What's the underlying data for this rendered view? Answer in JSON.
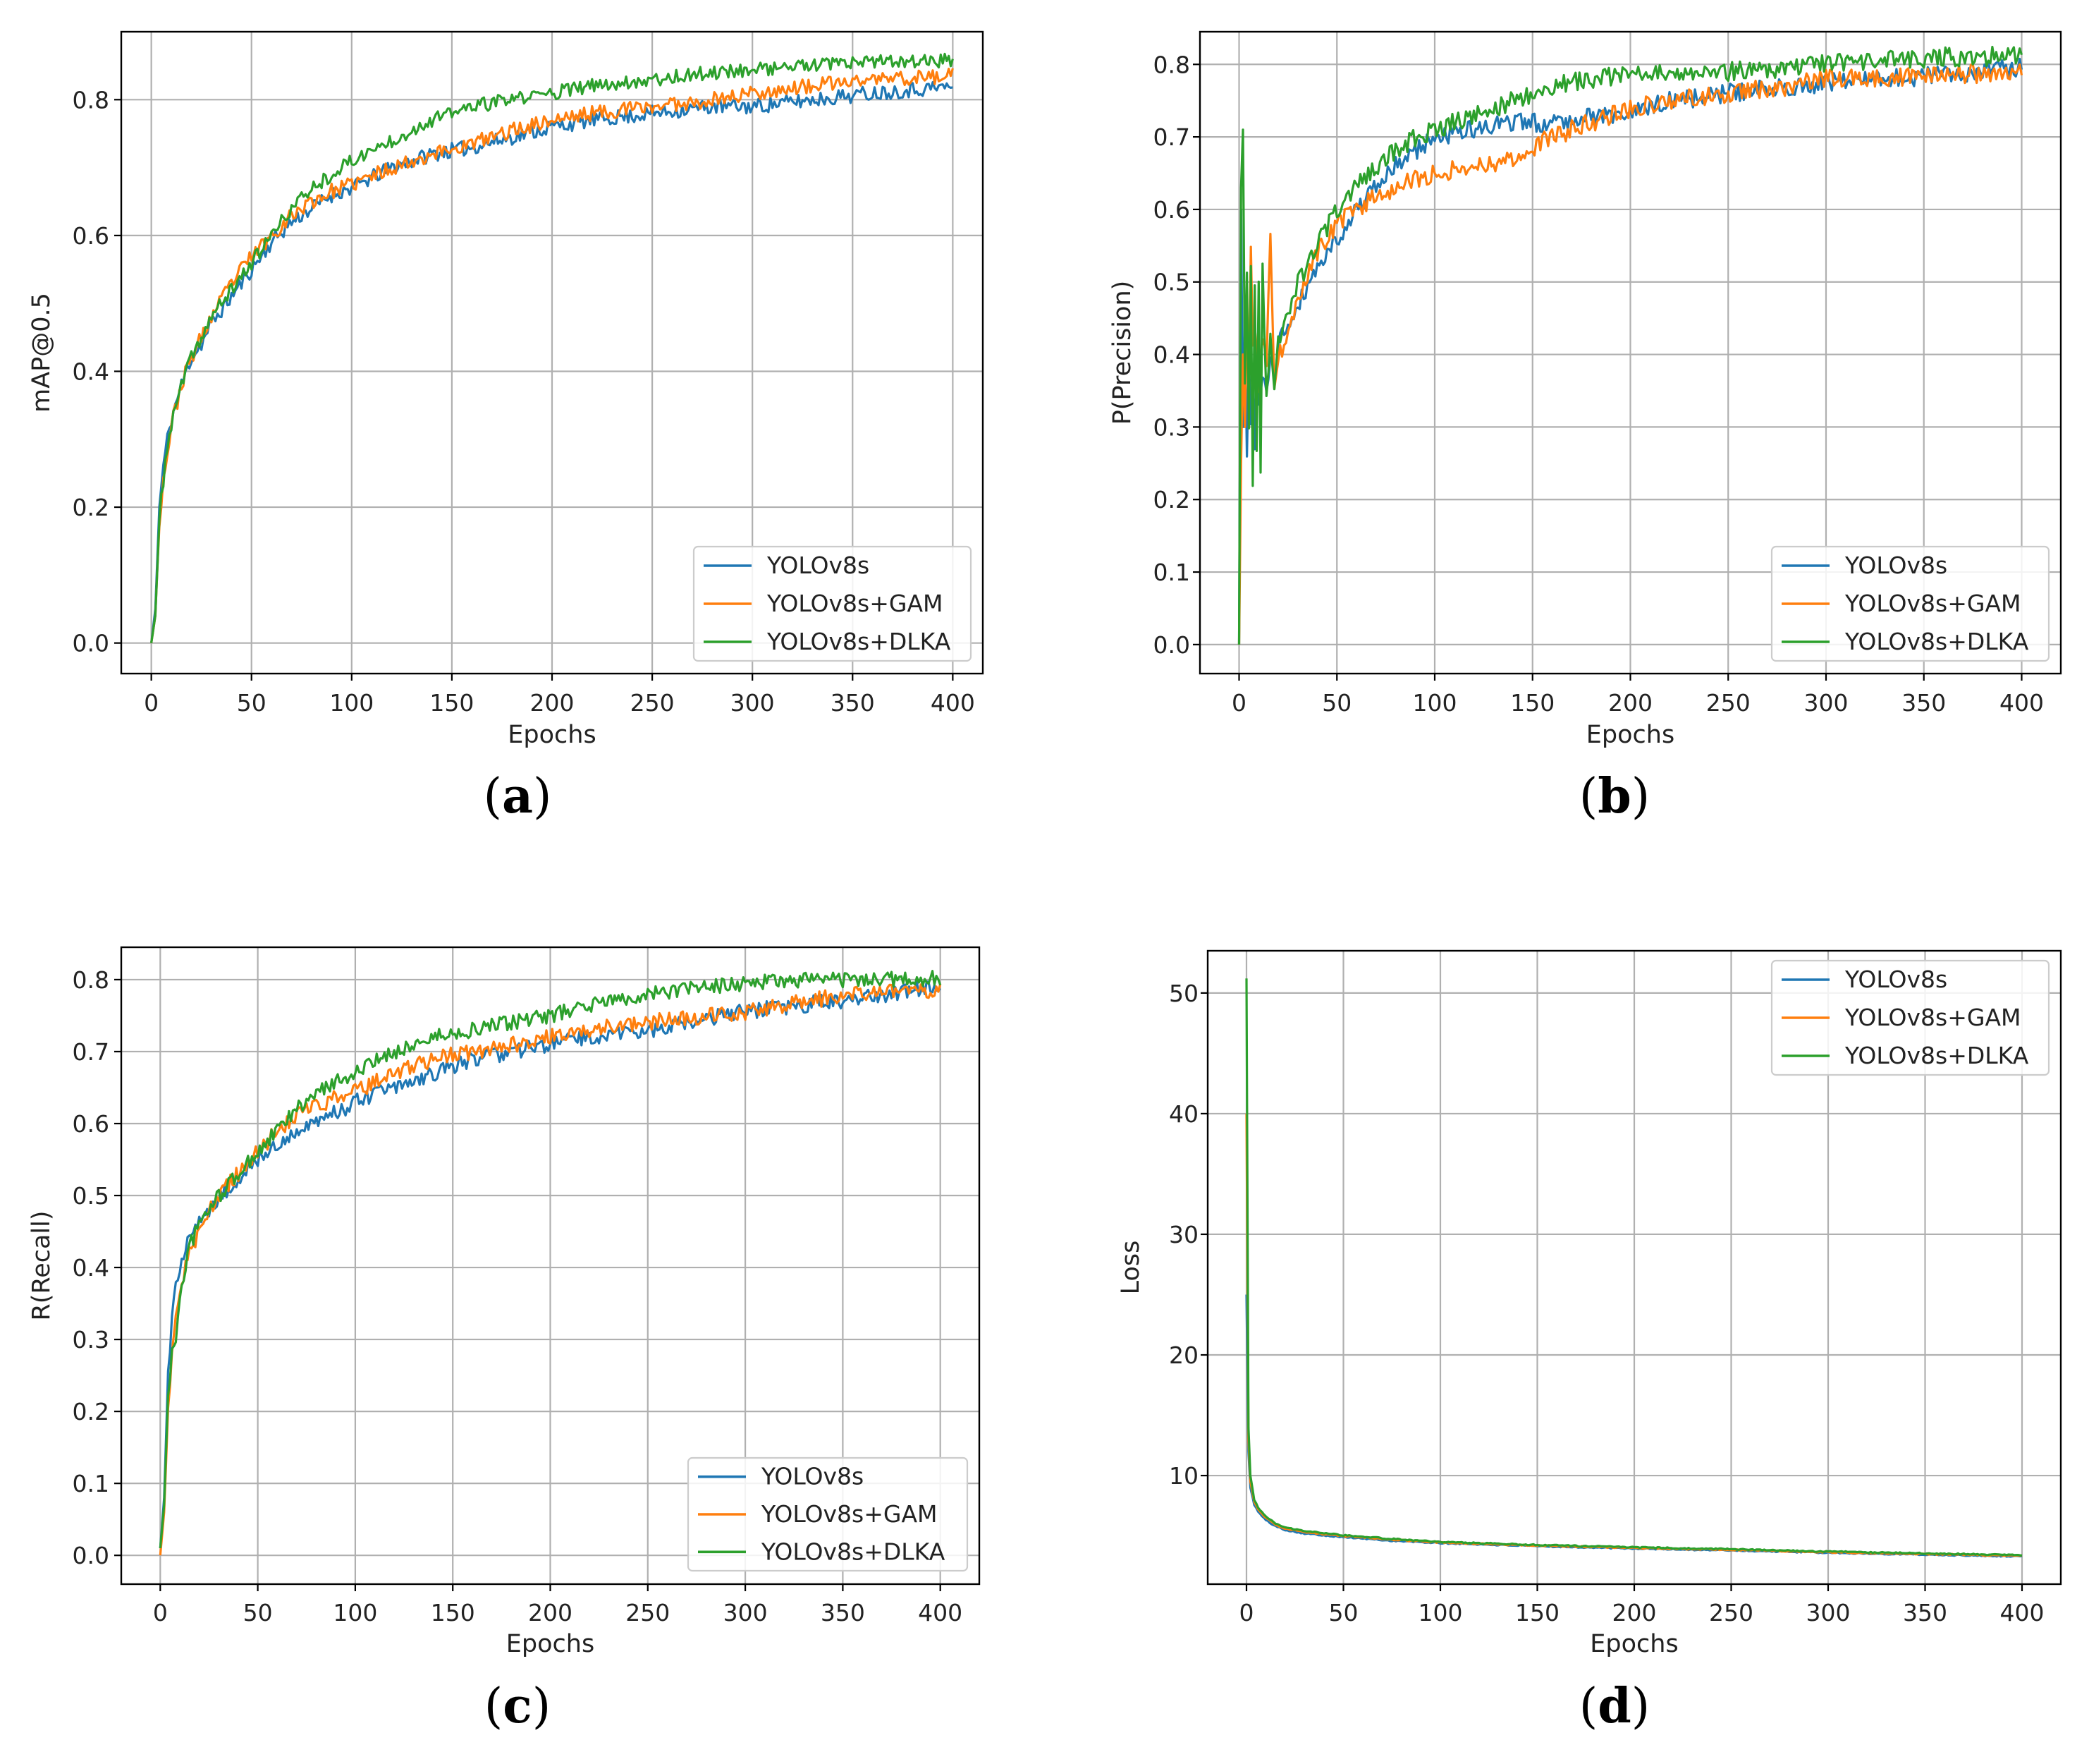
{
  "chart_data": [
    {
      "id": "a",
      "type": "line",
      "caption": "(a)",
      "caption_parts": {
        "open": "(",
        "letter": "a",
        "close": ")"
      },
      "xlabel": "Epochs",
      "ylabel": "mAP@0.5",
      "xlim": [
        -15,
        415
      ],
      "ylim": [
        -0.045,
        0.9
      ],
      "xticks": [
        0,
        50,
        100,
        150,
        200,
        250,
        300,
        350,
        400
      ],
      "yticks": [
        0.0,
        0.2,
        0.4,
        0.6,
        0.8
      ],
      "ytick_labels": [
        "0.0",
        "0.2",
        "0.4",
        "0.6",
        "0.8"
      ],
      "grid": true,
      "legend": {
        "position": "lower-right",
        "entries": [
          "YOLOv8s",
          "YOLOv8s+GAM",
          "YOLOv8s+DLKA"
        ]
      },
      "series": [
        {
          "name": "YOLOv8s",
          "color": "#1f77b4",
          "noise": 0.012,
          "seed": 11,
          "x": [
            0,
            2,
            4,
            6,
            8,
            10,
            15,
            20,
            25,
            30,
            40,
            50,
            60,
            70,
            80,
            90,
            100,
            120,
            140,
            160,
            180,
            200,
            220,
            250,
            280,
            300,
            330,
            360,
            400
          ],
          "y": [
            0.0,
            0.05,
            0.2,
            0.26,
            0.3,
            0.33,
            0.38,
            0.42,
            0.44,
            0.47,
            0.51,
            0.55,
            0.59,
            0.62,
            0.64,
            0.66,
            0.67,
            0.7,
            0.72,
            0.73,
            0.745,
            0.76,
            0.77,
            0.78,
            0.79,
            0.79,
            0.8,
            0.81,
            0.82
          ]
        },
        {
          "name": "YOLOv8s+GAM",
          "color": "#ff7f0e",
          "noise": 0.012,
          "seed": 23,
          "x": [
            0,
            2,
            4,
            6,
            8,
            10,
            15,
            20,
            25,
            30,
            40,
            50,
            60,
            70,
            80,
            90,
            100,
            120,
            140,
            160,
            180,
            200,
            220,
            250,
            280,
            300,
            330,
            360,
            400
          ],
          "y": [
            0.0,
            0.04,
            0.18,
            0.24,
            0.28,
            0.32,
            0.38,
            0.42,
            0.45,
            0.48,
            0.53,
            0.57,
            0.6,
            0.63,
            0.65,
            0.665,
            0.675,
            0.7,
            0.72,
            0.735,
            0.755,
            0.77,
            0.78,
            0.79,
            0.8,
            0.81,
            0.82,
            0.83,
            0.835
          ]
        },
        {
          "name": "YOLOv8s+DLKA",
          "color": "#2ca02c",
          "noise": 0.011,
          "seed": 37,
          "x": [
            0,
            2,
            4,
            6,
            8,
            10,
            15,
            20,
            25,
            30,
            40,
            50,
            60,
            70,
            80,
            90,
            100,
            120,
            140,
            160,
            180,
            200,
            220,
            250,
            280,
            300,
            330,
            360,
            400
          ],
          "y": [
            0.0,
            0.04,
            0.18,
            0.24,
            0.29,
            0.32,
            0.38,
            0.42,
            0.45,
            0.48,
            0.52,
            0.56,
            0.6,
            0.64,
            0.67,
            0.69,
            0.71,
            0.74,
            0.77,
            0.79,
            0.8,
            0.81,
            0.82,
            0.83,
            0.84,
            0.845,
            0.85,
            0.855,
            0.858
          ]
        }
      ]
    },
    {
      "id": "b",
      "type": "line",
      "caption": "(b)",
      "caption_parts": {
        "open": "(",
        "letter": "b",
        "close": ")"
      },
      "xlabel": "Epochs",
      "ylabel": "P(Precision)",
      "xlim": [
        -20,
        420
      ],
      "ylim": [
        -0.04,
        0.845
      ],
      "xticks": [
        0,
        50,
        100,
        150,
        200,
        250,
        300,
        350,
        400
      ],
      "yticks": [
        0.0,
        0.1,
        0.2,
        0.3,
        0.4,
        0.5,
        0.6,
        0.7,
        0.8
      ],
      "ytick_labels": [
        "0.0",
        "0.1",
        "0.2",
        "0.3",
        "0.4",
        "0.5",
        "0.6",
        "0.7",
        "0.8"
      ],
      "grid": true,
      "legend": {
        "position": "lower-right",
        "entries": [
          "YOLOv8s",
          "YOLOv8s+GAM",
          "YOLOv8s+DLKA"
        ]
      },
      "series": [
        {
          "name": "YOLOv8s",
          "color": "#1f77b4",
          "noise": 0.015,
          "seed": 41,
          "x": [
            0,
            1,
            2,
            3,
            4,
            5,
            6,
            7,
            8,
            9,
            10,
            12,
            14,
            16,
            18,
            20,
            25,
            30,
            40,
            50,
            60,
            70,
            80,
            90,
            100,
            120,
            140,
            160,
            180,
            200,
            220,
            250,
            280,
            300,
            330,
            360,
            400
          ],
          "y": [
            0.0,
            0.6,
            0.3,
            0.45,
            0.25,
            0.4,
            0.3,
            0.38,
            0.26,
            0.4,
            0.32,
            0.38,
            0.34,
            0.4,
            0.36,
            0.42,
            0.44,
            0.47,
            0.52,
            0.56,
            0.6,
            0.63,
            0.66,
            0.68,
            0.7,
            0.71,
            0.72,
            0.72,
            0.73,
            0.73,
            0.75,
            0.76,
            0.77,
            0.775,
            0.78,
            0.785,
            0.795
          ]
        },
        {
          "name": "YOLOv8s+GAM",
          "color": "#ff7f0e",
          "noise": 0.015,
          "seed": 53,
          "x": [
            0,
            1,
            2,
            3,
            4,
            5,
            6,
            7,
            8,
            10,
            12,
            14,
            16,
            18,
            20,
            25,
            30,
            40,
            50,
            60,
            70,
            80,
            90,
            100,
            120,
            140,
            160,
            180,
            200,
            220,
            250,
            280,
            300,
            330,
            360,
            400
          ],
          "y": [
            0.0,
            0.25,
            0.4,
            0.3,
            0.45,
            0.35,
            0.56,
            0.4,
            0.45,
            0.36,
            0.42,
            0.38,
            0.56,
            0.34,
            0.4,
            0.42,
            0.48,
            0.54,
            0.58,
            0.6,
            0.62,
            0.63,
            0.64,
            0.65,
            0.66,
            0.67,
            0.7,
            0.72,
            0.74,
            0.75,
            0.76,
            0.77,
            0.78,
            0.78,
            0.785,
            0.79
          ]
        },
        {
          "name": "YOLOv8s+DLKA",
          "color": "#2ca02c",
          "noise": 0.015,
          "seed": 67,
          "x": [
            0,
            1,
            2,
            3,
            4,
            5,
            6,
            7,
            8,
            9,
            10,
            11,
            12,
            14,
            16,
            18,
            20,
            25,
            30,
            40,
            50,
            60,
            70,
            80,
            90,
            100,
            120,
            140,
            160,
            180,
            200,
            220,
            250,
            280,
            300,
            330,
            360,
            400
          ],
          "y": [
            0.0,
            0.63,
            0.71,
            0.36,
            0.5,
            0.3,
            0.52,
            0.22,
            0.5,
            0.26,
            0.5,
            0.24,
            0.52,
            0.34,
            0.42,
            0.36,
            0.42,
            0.46,
            0.5,
            0.55,
            0.6,
            0.63,
            0.66,
            0.68,
            0.7,
            0.71,
            0.73,
            0.75,
            0.77,
            0.78,
            0.785,
            0.79,
            0.79,
            0.795,
            0.8,
            0.805,
            0.81,
            0.812
          ]
        }
      ]
    },
    {
      "id": "c",
      "type": "line",
      "caption": "(c)",
      "caption_parts": {
        "open": "(",
        "letter": "c",
        "close": ")"
      },
      "xlabel": "Epochs",
      "ylabel": "R(Recall)",
      "xlim": [
        -20,
        420
      ],
      "ylim": [
        -0.04,
        0.845
      ],
      "xticks": [
        0,
        50,
        100,
        150,
        200,
        250,
        300,
        350,
        400
      ],
      "yticks": [
        0.0,
        0.1,
        0.2,
        0.3,
        0.4,
        0.5,
        0.6,
        0.7,
        0.8
      ],
      "ytick_labels": [
        "0.0",
        "0.1",
        "0.2",
        "0.3",
        "0.4",
        "0.5",
        "0.6",
        "0.7",
        "0.8"
      ],
      "grid": true,
      "legend": {
        "position": "lower-right",
        "entries": [
          "YOLOv8s",
          "YOLOv8s+GAM",
          "YOLOv8s+DLKA"
        ]
      },
      "series": [
        {
          "name": "YOLOv8s",
          "color": "#1f77b4",
          "noise": 0.013,
          "seed": 71,
          "x": [
            0,
            2,
            4,
            6,
            8,
            10,
            15,
            20,
            25,
            30,
            40,
            50,
            60,
            70,
            80,
            90,
            100,
            120,
            140,
            160,
            180,
            200,
            220,
            250,
            280,
            300,
            330,
            360,
            400
          ],
          "y": [
            0.01,
            0.08,
            0.25,
            0.33,
            0.38,
            0.4,
            0.44,
            0.46,
            0.48,
            0.5,
            0.52,
            0.55,
            0.57,
            0.59,
            0.6,
            0.615,
            0.63,
            0.65,
            0.67,
            0.69,
            0.7,
            0.71,
            0.72,
            0.73,
            0.745,
            0.755,
            0.765,
            0.775,
            0.792
          ]
        },
        {
          "name": "YOLOv8s+GAM",
          "color": "#ff7f0e",
          "noise": 0.013,
          "seed": 83,
          "x": [
            0,
            2,
            4,
            6,
            8,
            10,
            15,
            20,
            25,
            30,
            40,
            50,
            60,
            70,
            80,
            90,
            100,
            120,
            140,
            160,
            180,
            200,
            220,
            250,
            280,
            300,
            330,
            360,
            400
          ],
          "y": [
            0.0,
            0.06,
            0.2,
            0.28,
            0.33,
            0.37,
            0.42,
            0.45,
            0.48,
            0.5,
            0.53,
            0.56,
            0.59,
            0.61,
            0.625,
            0.635,
            0.645,
            0.67,
            0.69,
            0.7,
            0.71,
            0.72,
            0.73,
            0.74,
            0.75,
            0.755,
            0.77,
            0.78,
            0.785
          ]
        },
        {
          "name": "YOLOv8s+DLKA",
          "color": "#2ca02c",
          "noise": 0.012,
          "seed": 97,
          "x": [
            0,
            2,
            4,
            6,
            8,
            10,
            15,
            20,
            25,
            30,
            40,
            50,
            60,
            70,
            80,
            90,
            100,
            120,
            140,
            160,
            180,
            200,
            220,
            250,
            280,
            300,
            330,
            360,
            400
          ],
          "y": [
            0.01,
            0.07,
            0.22,
            0.28,
            0.3,
            0.36,
            0.43,
            0.46,
            0.48,
            0.5,
            0.53,
            0.56,
            0.59,
            0.62,
            0.64,
            0.66,
            0.67,
            0.7,
            0.72,
            0.73,
            0.74,
            0.75,
            0.765,
            0.78,
            0.79,
            0.795,
            0.8,
            0.8,
            0.802
          ]
        }
      ]
    },
    {
      "id": "d",
      "type": "line",
      "caption": "(d)",
      "caption_parts": {
        "open": "(",
        "letter": "d",
        "close": ")"
      },
      "xlabel": "Epochs",
      "ylabel": "Loss",
      "xlim": [
        -20,
        420
      ],
      "ylim": [
        1.0,
        53.5
      ],
      "xticks": [
        0,
        50,
        100,
        150,
        200,
        250,
        300,
        350,
        400
      ],
      "yticks": [
        10,
        20,
        30,
        40,
        50
      ],
      "ytick_labels": [
        "10",
        "20",
        "30",
        "40",
        "50"
      ],
      "grid": true,
      "legend": {
        "position": "top-right",
        "entries": [
          "YOLOv8s",
          "YOLOv8s+GAM",
          "YOLOv8s+DLKA"
        ]
      },
      "series": [
        {
          "name": "YOLOv8s",
          "color": "#1f77b4",
          "noise": 0.05,
          "seed": 101,
          "x": [
            0,
            1,
            2,
            4,
            6,
            10,
            15,
            20,
            30,
            50,
            75,
            100,
            150,
            200,
            250,
            300,
            350,
            400
          ],
          "y": [
            25.0,
            12.0,
            9.0,
            7.6,
            7.0,
            6.3,
            5.8,
            5.5,
            5.2,
            4.9,
            4.6,
            4.4,
            4.15,
            3.95,
            3.8,
            3.6,
            3.45,
            3.3
          ]
        },
        {
          "name": "YOLOv8s+GAM",
          "color": "#ff7f0e",
          "noise": 0.05,
          "seed": 113,
          "x": [
            0,
            1,
            2,
            4,
            6,
            10,
            15,
            20,
            30,
            50,
            75,
            100,
            150,
            200,
            250,
            300,
            350,
            400
          ],
          "y": [
            40.0,
            13.0,
            9.5,
            7.8,
            7.2,
            6.5,
            5.9,
            5.6,
            5.3,
            5.0,
            4.7,
            4.45,
            4.2,
            4.0,
            3.85,
            3.65,
            3.5,
            3.35
          ]
        },
        {
          "name": "YOLOv8s+DLKA",
          "color": "#2ca02c",
          "noise": 0.05,
          "seed": 127,
          "x": [
            0,
            1,
            2,
            4,
            6,
            10,
            15,
            20,
            30,
            50,
            75,
            100,
            150,
            200,
            250,
            300,
            350,
            400
          ],
          "y": [
            51.2,
            14.0,
            10.0,
            8.0,
            7.3,
            6.6,
            6.0,
            5.7,
            5.4,
            5.05,
            4.75,
            4.5,
            4.25,
            4.05,
            3.9,
            3.7,
            3.55,
            3.4
          ]
        }
      ]
    }
  ]
}
